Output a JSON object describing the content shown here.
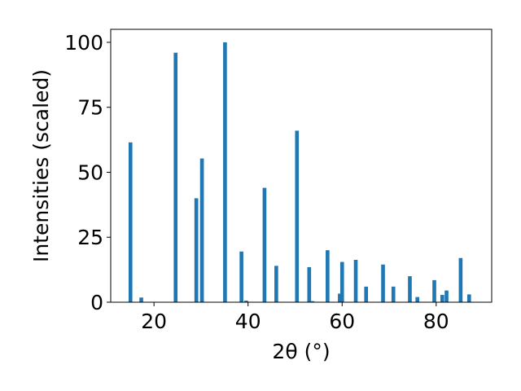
{
  "chart_data": {
    "type": "bar",
    "xlabel": "2θ (°)",
    "ylabel": "Intensities (scaled)",
    "xlim": [
      10.8,
      91.8
    ],
    "ylim": [
      0,
      105
    ],
    "xticks": [
      20,
      40,
      60,
      80
    ],
    "yticks": [
      0,
      25,
      50,
      75,
      100
    ],
    "bar_color": "#1f77b4",
    "grid": false,
    "bar_width": 0.8,
    "x": [
      15.0,
      17.3,
      24.6,
      29.0,
      30.2,
      35.1,
      38.6,
      39.6,
      43.5,
      46.0,
      50.4,
      53.0,
      53.7,
      56.9,
      59.5,
      60.0,
      62.9,
      65.1,
      68.7,
      70.9,
      74.4,
      76.0,
      79.6,
      81.3,
      82.2,
      85.2,
      87.0
    ],
    "values": [
      61.5,
      1.8,
      96.0,
      40.0,
      55.3,
      100.0,
      19.5,
      0.6,
      44.0,
      14.0,
      66.0,
      13.5,
      0.4,
      20.0,
      3.3,
      15.5,
      16.3,
      6.0,
      14.5,
      6.0,
      10.0,
      2.0,
      8.5,
      2.8,
      4.5,
      17.0,
      3.0
    ]
  }
}
